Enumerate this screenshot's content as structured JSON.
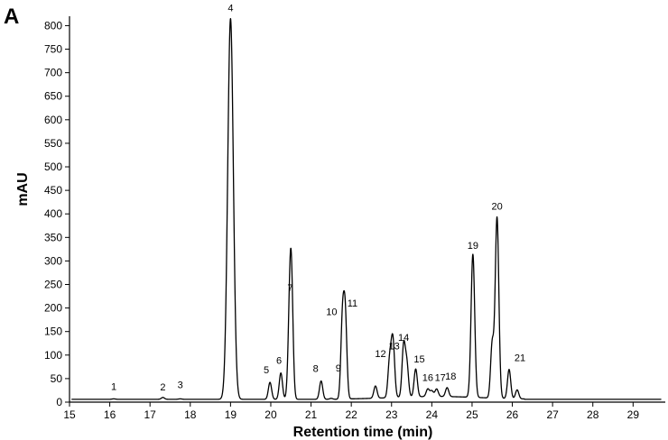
{
  "panel_label": "A",
  "chart_data": {
    "type": "line",
    "xlabel": "Retention time (min)",
    "ylabel": "mAU",
    "xlim": [
      15,
      29.8
    ],
    "ylim": [
      0,
      820
    ],
    "x_ticks": [
      15,
      16,
      17,
      18,
      19,
      20,
      21,
      22,
      23,
      24,
      25,
      26,
      27,
      28,
      29
    ],
    "y_ticks": [
      0,
      50,
      100,
      150,
      200,
      250,
      300,
      350,
      400,
      450,
      500,
      550,
      600,
      650,
      700,
      750,
      800
    ],
    "baseline": 6,
    "line_color": "#000000",
    "peaks": [
      {
        "label": "1",
        "x": 16.1,
        "y": 7
      },
      {
        "label": "2",
        "x": 17.32,
        "y": 10
      },
      {
        "label": "3",
        "x": 17.75,
        "y": 7
      },
      {
        "label": "4",
        "x": 19.0,
        "y": 815
      },
      {
        "label": "5",
        "x": 19.98,
        "y": 42
      },
      {
        "label": "6",
        "x": 20.25,
        "y": 62
      },
      {
        "label": "7",
        "x": 20.48,
        "y": 220
      },
      {
        "label": "8",
        "x": 21.25,
        "y": 45
      },
      {
        "label": "9",
        "x": 21.5,
        "y": 8
      },
      {
        "label": "10",
        "x": 21.78,
        "y": 170
      },
      {
        "label": "11",
        "x": 21.85,
        "y": 180
      },
      {
        "label": "12",
        "x": 22.95,
        "y": 80
      },
      {
        "label": "13",
        "x": 23.02,
        "y": 85
      },
      {
        "label": "14",
        "x": 23.3,
        "y": 115
      },
      {
        "label": "15",
        "x": 23.6,
        "y": 65
      },
      {
        "label": "16",
        "x": 23.9,
        "y": 22
      },
      {
        "label": "17",
        "x": 24.12,
        "y": 22
      },
      {
        "label": "18",
        "x": 24.38,
        "y": 25
      },
      {
        "label": "19",
        "x": 25.02,
        "y": 310
      },
      {
        "label": "20",
        "x": 25.62,
        "y": 390
      },
      {
        "label": "21",
        "x": 25.92,
        "y": 68
      }
    ],
    "unlabeled_peaks": [
      {
        "x": 20.52,
        "y": 150
      },
      {
        "x": 22.6,
        "y": 32
      },
      {
        "x": 23.05,
        "y": 60
      },
      {
        "x": 23.38,
        "y": 75
      },
      {
        "x": 24.0,
        "y": 18
      },
      {
        "x": 25.5,
        "y": 120
      },
      {
        "x": 26.12,
        "y": 25
      }
    ],
    "hump_ranges": [
      [
        21.9,
        26.3
      ]
    ]
  }
}
